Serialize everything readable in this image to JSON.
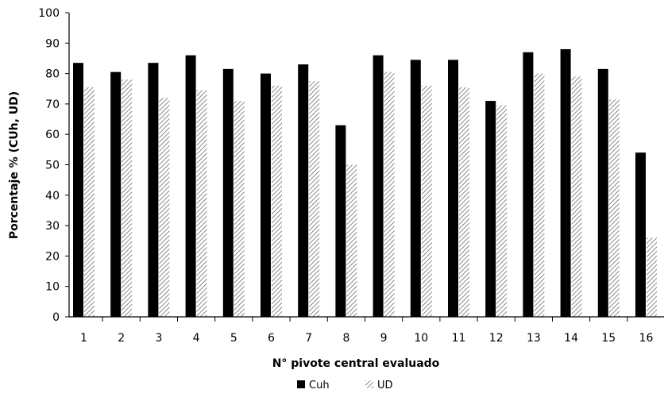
{
  "chart_data": {
    "type": "bar",
    "categories": [
      "1",
      "2",
      "3",
      "4",
      "5",
      "6",
      "7",
      "8",
      "9",
      "10",
      "11",
      "12",
      "13",
      "14",
      "15",
      "16"
    ],
    "series": [
      {
        "name": "Cuh",
        "values": [
          83.5,
          80.5,
          83.5,
          86,
          81.5,
          80,
          83,
          63,
          86,
          84.5,
          84.5,
          71,
          87,
          88,
          81.5,
          54
        ],
        "color": "#000000",
        "fill": "solid"
      },
      {
        "name": "UD",
        "values": [
          75.5,
          78,
          72,
          74.5,
          71,
          76,
          77.5,
          50,
          80.5,
          76,
          75.5,
          69.5,
          80,
          79,
          71.5,
          26
        ],
        "color": "#9a9a9a",
        "fill": "diagonal-hatch"
      }
    ],
    "title": "",
    "xlabel": "N° pivote central evaluado",
    "ylabel": "Porcentaje % (CUh, UD)",
    "ylim": [
      0,
      100
    ],
    "yticks": [
      0,
      10,
      20,
      30,
      40,
      50,
      60,
      70,
      80,
      90,
      100
    ],
    "grid": false,
    "legend_position": "bottom"
  }
}
